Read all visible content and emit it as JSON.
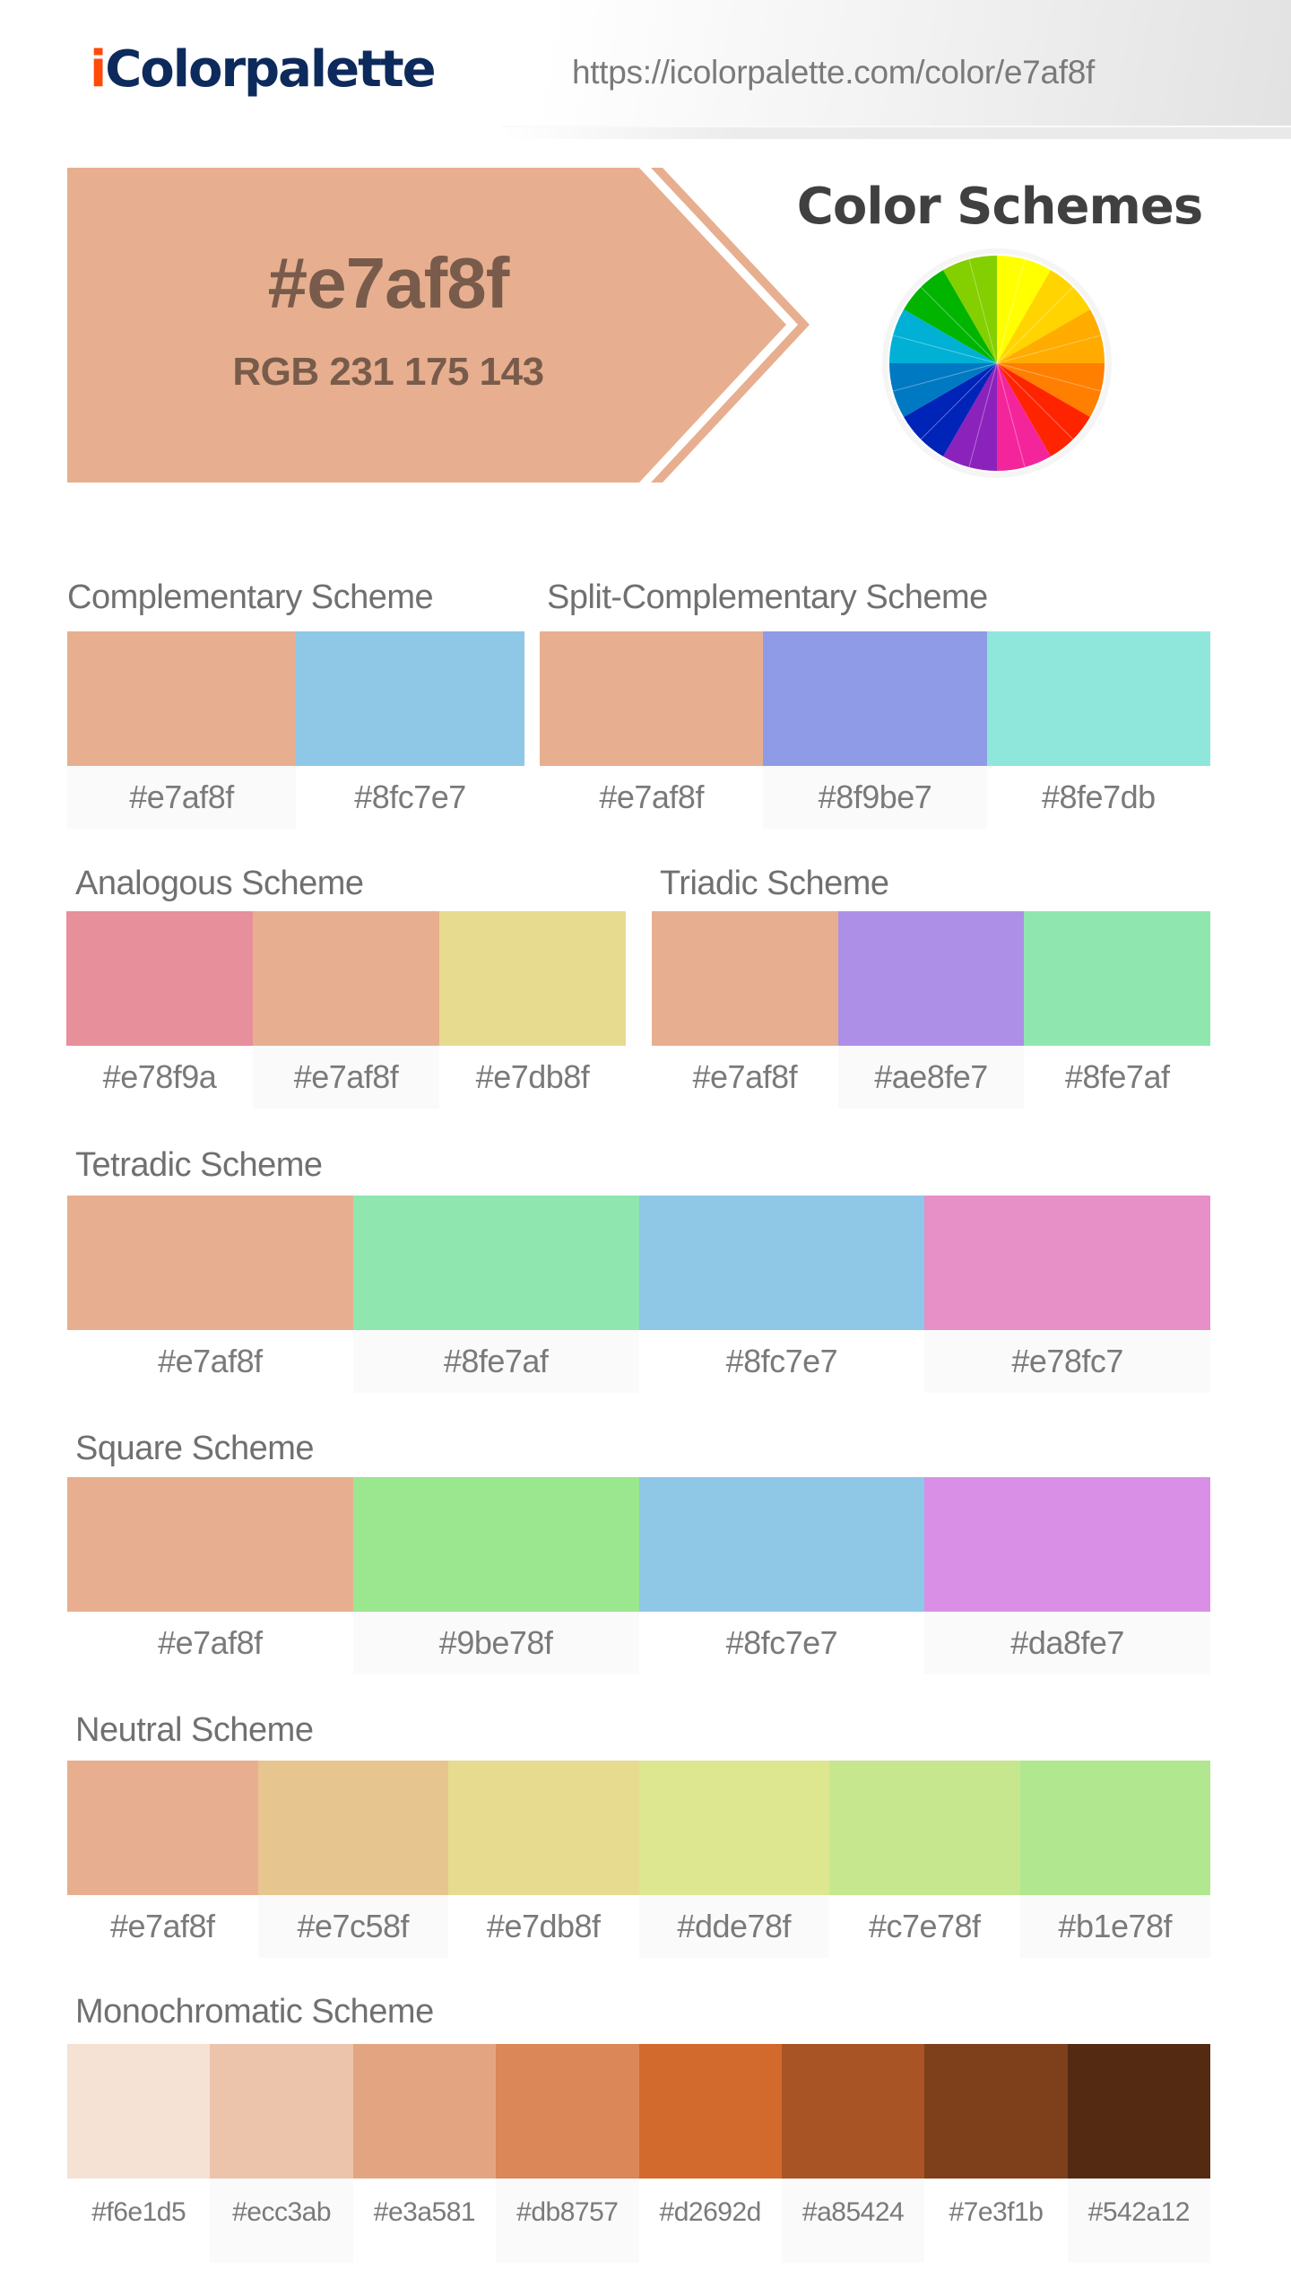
{
  "header": {
    "logo_prefix": "i",
    "logo_rest": "Colorpalette",
    "url": "https://icolorpalette.com/color/e7af8f"
  },
  "hero": {
    "hex": "#e7af8f",
    "rgb": "RGB 231 175 143",
    "color": "#e7af8f",
    "text_color": "#785b4b"
  },
  "color_schemes_title": "Color Schemes",
  "color_wheel": {
    "wedges": [
      "#ffff00",
      "#ffd400",
      "#ffab00",
      "#ff7f00",
      "#ff2400",
      "#f4259b",
      "#8b22bb",
      "#0023b8",
      "#0079c3",
      "#00b1d5",
      "#00b400",
      "#84cf00"
    ]
  },
  "schemes": {
    "complementary": {
      "title": "Complementary Scheme",
      "colors": [
        {
          "hex": "#e7af8f",
          "label": "#e7af8f"
        },
        {
          "hex": "#8fc7e7",
          "label": "#8fc7e7"
        }
      ]
    },
    "split_complementary": {
      "title": "Split-Complementary Scheme",
      "colors": [
        {
          "hex": "#e7af8f",
          "label": "#e7af8f"
        },
        {
          "hex": "#8f9be7",
          "label": "#8f9be7"
        },
        {
          "hex": "#8fe7db",
          "label": "#8fe7db"
        }
      ]
    },
    "analogous": {
      "title": "Analogous Scheme",
      "colors": [
        {
          "hex": "#e78f9a",
          "label": "#e78f9a"
        },
        {
          "hex": "#e7af8f",
          "label": "#e7af8f"
        },
        {
          "hex": "#e7db8f",
          "label": "#e7db8f"
        }
      ]
    },
    "triadic": {
      "title": "Triadic Scheme",
      "colors": [
        {
          "hex": "#e7af8f",
          "label": "#e7af8f"
        },
        {
          "hex": "#ae8fe7",
          "label": "#ae8fe7"
        },
        {
          "hex": "#8fe7af",
          "label": "#8fe7af"
        }
      ]
    },
    "tetradic": {
      "title": "Tetradic Scheme",
      "colors": [
        {
          "hex": "#e7af8f",
          "label": "#e7af8f"
        },
        {
          "hex": "#8fe7af",
          "label": "#8fe7af"
        },
        {
          "hex": "#8fc7e7",
          "label": "#8fc7e7"
        },
        {
          "hex": "#e78fc7",
          "label": "#e78fc7"
        }
      ]
    },
    "square": {
      "title": "Square Scheme",
      "colors": [
        {
          "hex": "#e7af8f",
          "label": "#e7af8f"
        },
        {
          "hex": "#9be78f",
          "label": "#9be78f"
        },
        {
          "hex": "#8fc7e7",
          "label": "#8fc7e7"
        },
        {
          "hex": "#da8fe7",
          "label": "#da8fe7"
        }
      ]
    },
    "neutral": {
      "title": "Neutral Scheme",
      "colors": [
        {
          "hex": "#e7af8f",
          "label": "#e7af8f"
        },
        {
          "hex": "#e7c58f",
          "label": "#e7c58f"
        },
        {
          "hex": "#e7db8f",
          "label": "#e7db8f"
        },
        {
          "hex": "#dde78f",
          "label": "#dde78f"
        },
        {
          "hex": "#c7e78f",
          "label": "#c7e78f"
        },
        {
          "hex": "#b1e78f",
          "label": "#b1e78f"
        }
      ]
    },
    "monochromatic": {
      "title": "Monochromatic Scheme",
      "colors": [
        {
          "hex": "#f6e1d5",
          "label": "#f6e1d5"
        },
        {
          "hex": "#ecc3ab",
          "label": "#ecc3ab"
        },
        {
          "hex": "#e3a581",
          "label": "#e3a581"
        },
        {
          "hex": "#db8757",
          "label": "#db8757"
        },
        {
          "hex": "#d2692d",
          "label": "#d2692d"
        },
        {
          "hex": "#a85424",
          "label": "#a85424"
        },
        {
          "hex": "#7e3f1b",
          "label": "#7e3f1b"
        },
        {
          "hex": "#542a12",
          "label": "#542a12"
        }
      ]
    }
  }
}
